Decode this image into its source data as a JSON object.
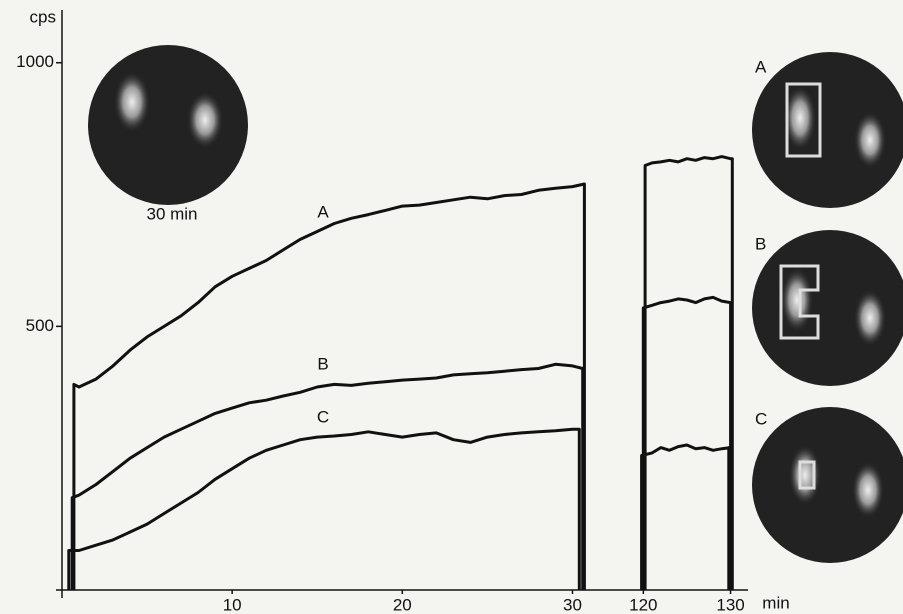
{
  "chart_data": [
    {
      "type": "line",
      "ylabel": "cps",
      "ylim": [
        0,
        1100
      ],
      "yticks": [
        500,
        1000
      ],
      "xlim": [
        0,
        31.5
      ],
      "xticks": [
        10,
        20,
        30
      ],
      "series": [
        {
          "name": "A",
          "color": "#111111",
          "x": [
            0.7,
            0.7,
            1,
            2,
            3,
            4,
            5,
            6,
            7,
            8,
            9,
            10,
            11,
            12,
            13,
            14,
            15,
            16,
            17,
            18,
            19,
            20,
            21,
            22,
            23,
            24,
            25,
            26,
            27,
            28,
            29,
            30,
            30.7,
            30.7
          ],
          "values": [
            0,
            390,
            385,
            400,
            425,
            455,
            480,
            500,
            520,
            545,
            575,
            595,
            610,
            625,
            645,
            665,
            680,
            695,
            705,
            712,
            720,
            728,
            730,
            735,
            740,
            745,
            742,
            748,
            750,
            758,
            762,
            765,
            770,
            0
          ]
        },
        {
          "name": "B",
          "color": "#111111",
          "x": [
            0.6,
            0.6,
            1,
            2,
            3,
            4,
            5,
            6,
            7,
            8,
            9,
            10,
            11,
            12,
            13,
            14,
            15,
            16,
            17,
            18,
            19,
            20,
            21,
            22,
            23,
            24,
            25,
            26,
            27,
            28,
            29,
            30,
            30.6,
            30.6
          ],
          "values": [
            0,
            175,
            180,
            200,
            225,
            250,
            270,
            290,
            305,
            320,
            335,
            345,
            355,
            360,
            368,
            375,
            385,
            390,
            388,
            392,
            395,
            398,
            400,
            402,
            408,
            410,
            412,
            415,
            418,
            420,
            428,
            425,
            420,
            0
          ]
        },
        {
          "name": "C",
          "color": "#111111",
          "x": [
            0.4,
            0.4,
            1,
            2,
            3,
            4,
            5,
            6,
            7,
            8,
            9,
            10,
            11,
            12,
            13,
            14,
            15,
            16,
            17,
            18,
            19,
            20,
            21,
            22,
            23,
            24,
            25,
            26,
            27,
            28,
            29,
            30,
            30.4,
            30.4
          ],
          "values": [
            0,
            75,
            75,
            85,
            95,
            110,
            125,
            145,
            165,
            185,
            210,
            230,
            250,
            265,
            275,
            285,
            290,
            292,
            295,
            300,
            295,
            290,
            295,
            298,
            285,
            280,
            290,
            295,
            298,
            300,
            302,
            305,
            305,
            0
          ]
        }
      ]
    },
    {
      "type": "line",
      "xlabel": "min",
      "ylim": [
        0,
        1100
      ],
      "xlim": [
        114,
        132
      ],
      "xticks": [
        120,
        130
      ],
      "series": [
        {
          "color": "#111111",
          "x": [
            120.2,
            120.2,
            121,
            122,
            123,
            124,
            125,
            126,
            127,
            128,
            129,
            130,
            130.2,
            130.2
          ],
          "values": [
            0,
            805,
            810,
            812,
            815,
            812,
            818,
            815,
            820,
            818,
            822,
            818,
            818,
            0
          ]
        },
        {
          "color": "#111111",
          "x": [
            120,
            120,
            121,
            122,
            123,
            124,
            125,
            126,
            127,
            128,
            129,
            130,
            130,
            130
          ],
          "values": [
            0,
            535,
            540,
            545,
            548,
            552,
            550,
            545,
            552,
            555,
            548,
            545,
            545,
            0
          ]
        },
        {
          "color": "#111111",
          "x": [
            119.8,
            119.8,
            121,
            122,
            123,
            124,
            125,
            126,
            127,
            128,
            129,
            130,
            129.8,
            129.8
          ],
          "values": [
            0,
            255,
            260,
            270,
            265,
            272,
            275,
            268,
            270,
            265,
            268,
            270,
            270,
            0
          ]
        }
      ]
    }
  ],
  "images": {
    "inset_label": "30 min",
    "panels": [
      "A",
      "B",
      "C"
    ]
  }
}
